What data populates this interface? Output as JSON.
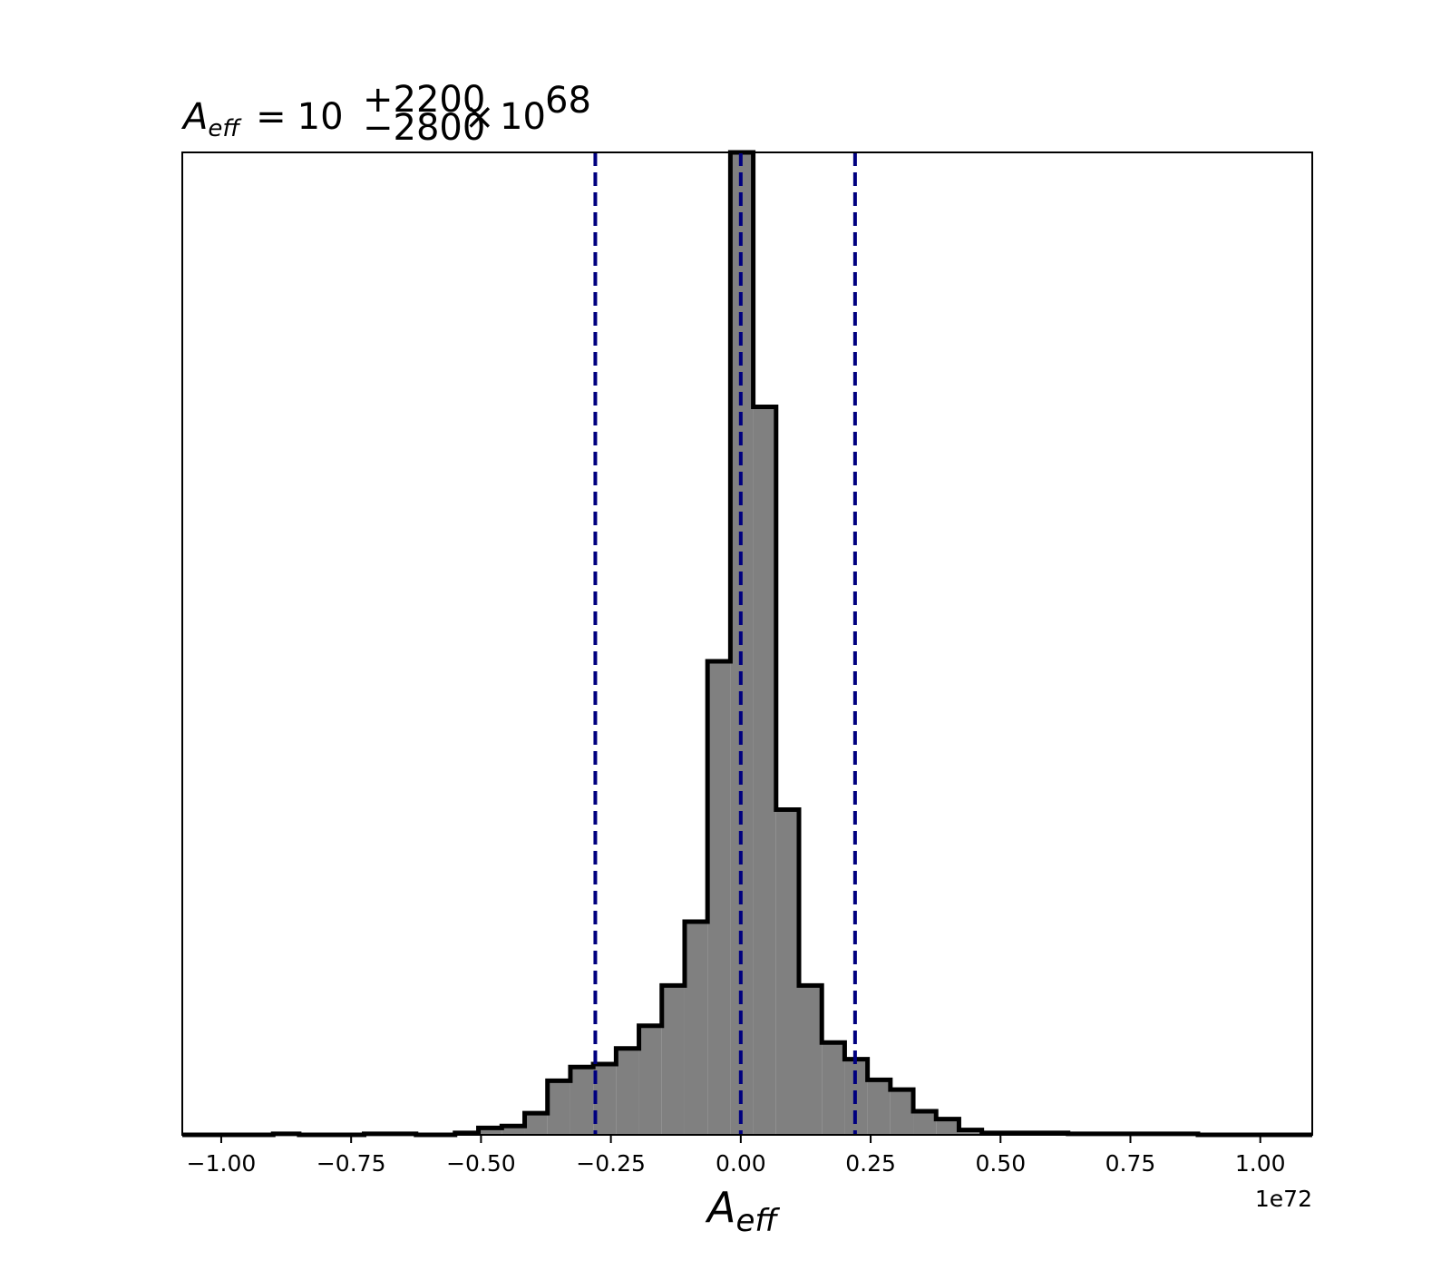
{
  "chart_data": {
    "type": "bar",
    "title": {
      "symbol": "A",
      "symbol_sub": "eff",
      "equals": "=",
      "base": "10",
      "sup": "+2200",
      "sub": "−2800",
      "times": "×",
      "mult_base": "10",
      "mult_exp": "68"
    },
    "xlabel": {
      "symbol": "A",
      "sub": "eff"
    },
    "x_offset_label": "1e72",
    "x_scale": 1e+72,
    "xlim": [
      -1.075,
      1.1
    ],
    "ylim": [
      0,
      1.0
    ],
    "y_ticks_visible": false,
    "grid": false,
    "x_ticks": [
      -1.0,
      -0.75,
      -0.5,
      -0.25,
      0.0,
      0.25,
      0.5,
      0.75,
      1.0
    ],
    "x_tick_labels": [
      "−1.00",
      "−0.75",
      "−0.50",
      "−0.25",
      "0.00",
      "0.25",
      "0.50",
      "0.75",
      "1.00"
    ],
    "histogram": {
      "fill_color": "#808080",
      "edge_color": "#000000",
      "bins": [
        {
          "x0": -1.075,
          "x1": -0.9,
          "count": 0.0
        },
        {
          "x0": -0.9,
          "x1": -0.85,
          "count": 0.001
        },
        {
          "x0": -0.85,
          "x1": -0.725,
          "count": 0.0
        },
        {
          "x0": -0.725,
          "x1": -0.625,
          "count": 0.001
        },
        {
          "x0": -0.625,
          "x1": -0.55,
          "count": 0.0
        },
        {
          "x0": -0.55,
          "x1": -0.505,
          "count": 0.002
        },
        {
          "x0": -0.505,
          "x1": -0.46,
          "count": 0.007
        },
        {
          "x0": -0.46,
          "x1": -0.416,
          "count": 0.009
        },
        {
          "x0": -0.416,
          "x1": -0.372,
          "count": 0.022
        },
        {
          "x0": -0.372,
          "x1": -0.328,
          "count": 0.055
        },
        {
          "x0": -0.328,
          "x1": -0.284,
          "count": 0.069
        },
        {
          "x0": -0.284,
          "x1": -0.24,
          "count": 0.072
        },
        {
          "x0": -0.24,
          "x1": -0.196,
          "count": 0.088
        },
        {
          "x0": -0.196,
          "x1": -0.152,
          "count": 0.111
        },
        {
          "x0": -0.152,
          "x1": -0.108,
          "count": 0.152
        },
        {
          "x0": -0.108,
          "x1": -0.064,
          "count": 0.217
        },
        {
          "x0": -0.064,
          "x1": -0.02,
          "count": 0.482
        },
        {
          "x0": -0.02,
          "x1": 0.024,
          "count": 1.0
        },
        {
          "x0": 0.024,
          "x1": 0.068,
          "count": 0.741
        },
        {
          "x0": 0.068,
          "x1": 0.112,
          "count": 0.331
        },
        {
          "x0": 0.112,
          "x1": 0.156,
          "count": 0.152
        },
        {
          "x0": 0.156,
          "x1": 0.2,
          "count": 0.094
        },
        {
          "x0": 0.2,
          "x1": 0.244,
          "count": 0.077
        },
        {
          "x0": 0.244,
          "x1": 0.288,
          "count": 0.056
        },
        {
          "x0": 0.288,
          "x1": 0.332,
          "count": 0.046
        },
        {
          "x0": 0.332,
          "x1": 0.376,
          "count": 0.024
        },
        {
          "x0": 0.376,
          "x1": 0.42,
          "count": 0.016
        },
        {
          "x0": 0.42,
          "x1": 0.464,
          "count": 0.005
        },
        {
          "x0": 0.464,
          "x1": 0.54,
          "count": 0.002
        },
        {
          "x0": 0.54,
          "x1": 0.63,
          "count": 0.002
        },
        {
          "x0": 0.63,
          "x1": 0.76,
          "count": 0.001
        },
        {
          "x0": 0.76,
          "x1": 0.88,
          "count": 0.001
        },
        {
          "x0": 0.88,
          "x1": 1.1,
          "count": 0.0
        }
      ]
    },
    "vlines": {
      "color": "#00007f",
      "style": "dashed",
      "values": [
        -0.28,
        0.0,
        0.22
      ]
    }
  }
}
